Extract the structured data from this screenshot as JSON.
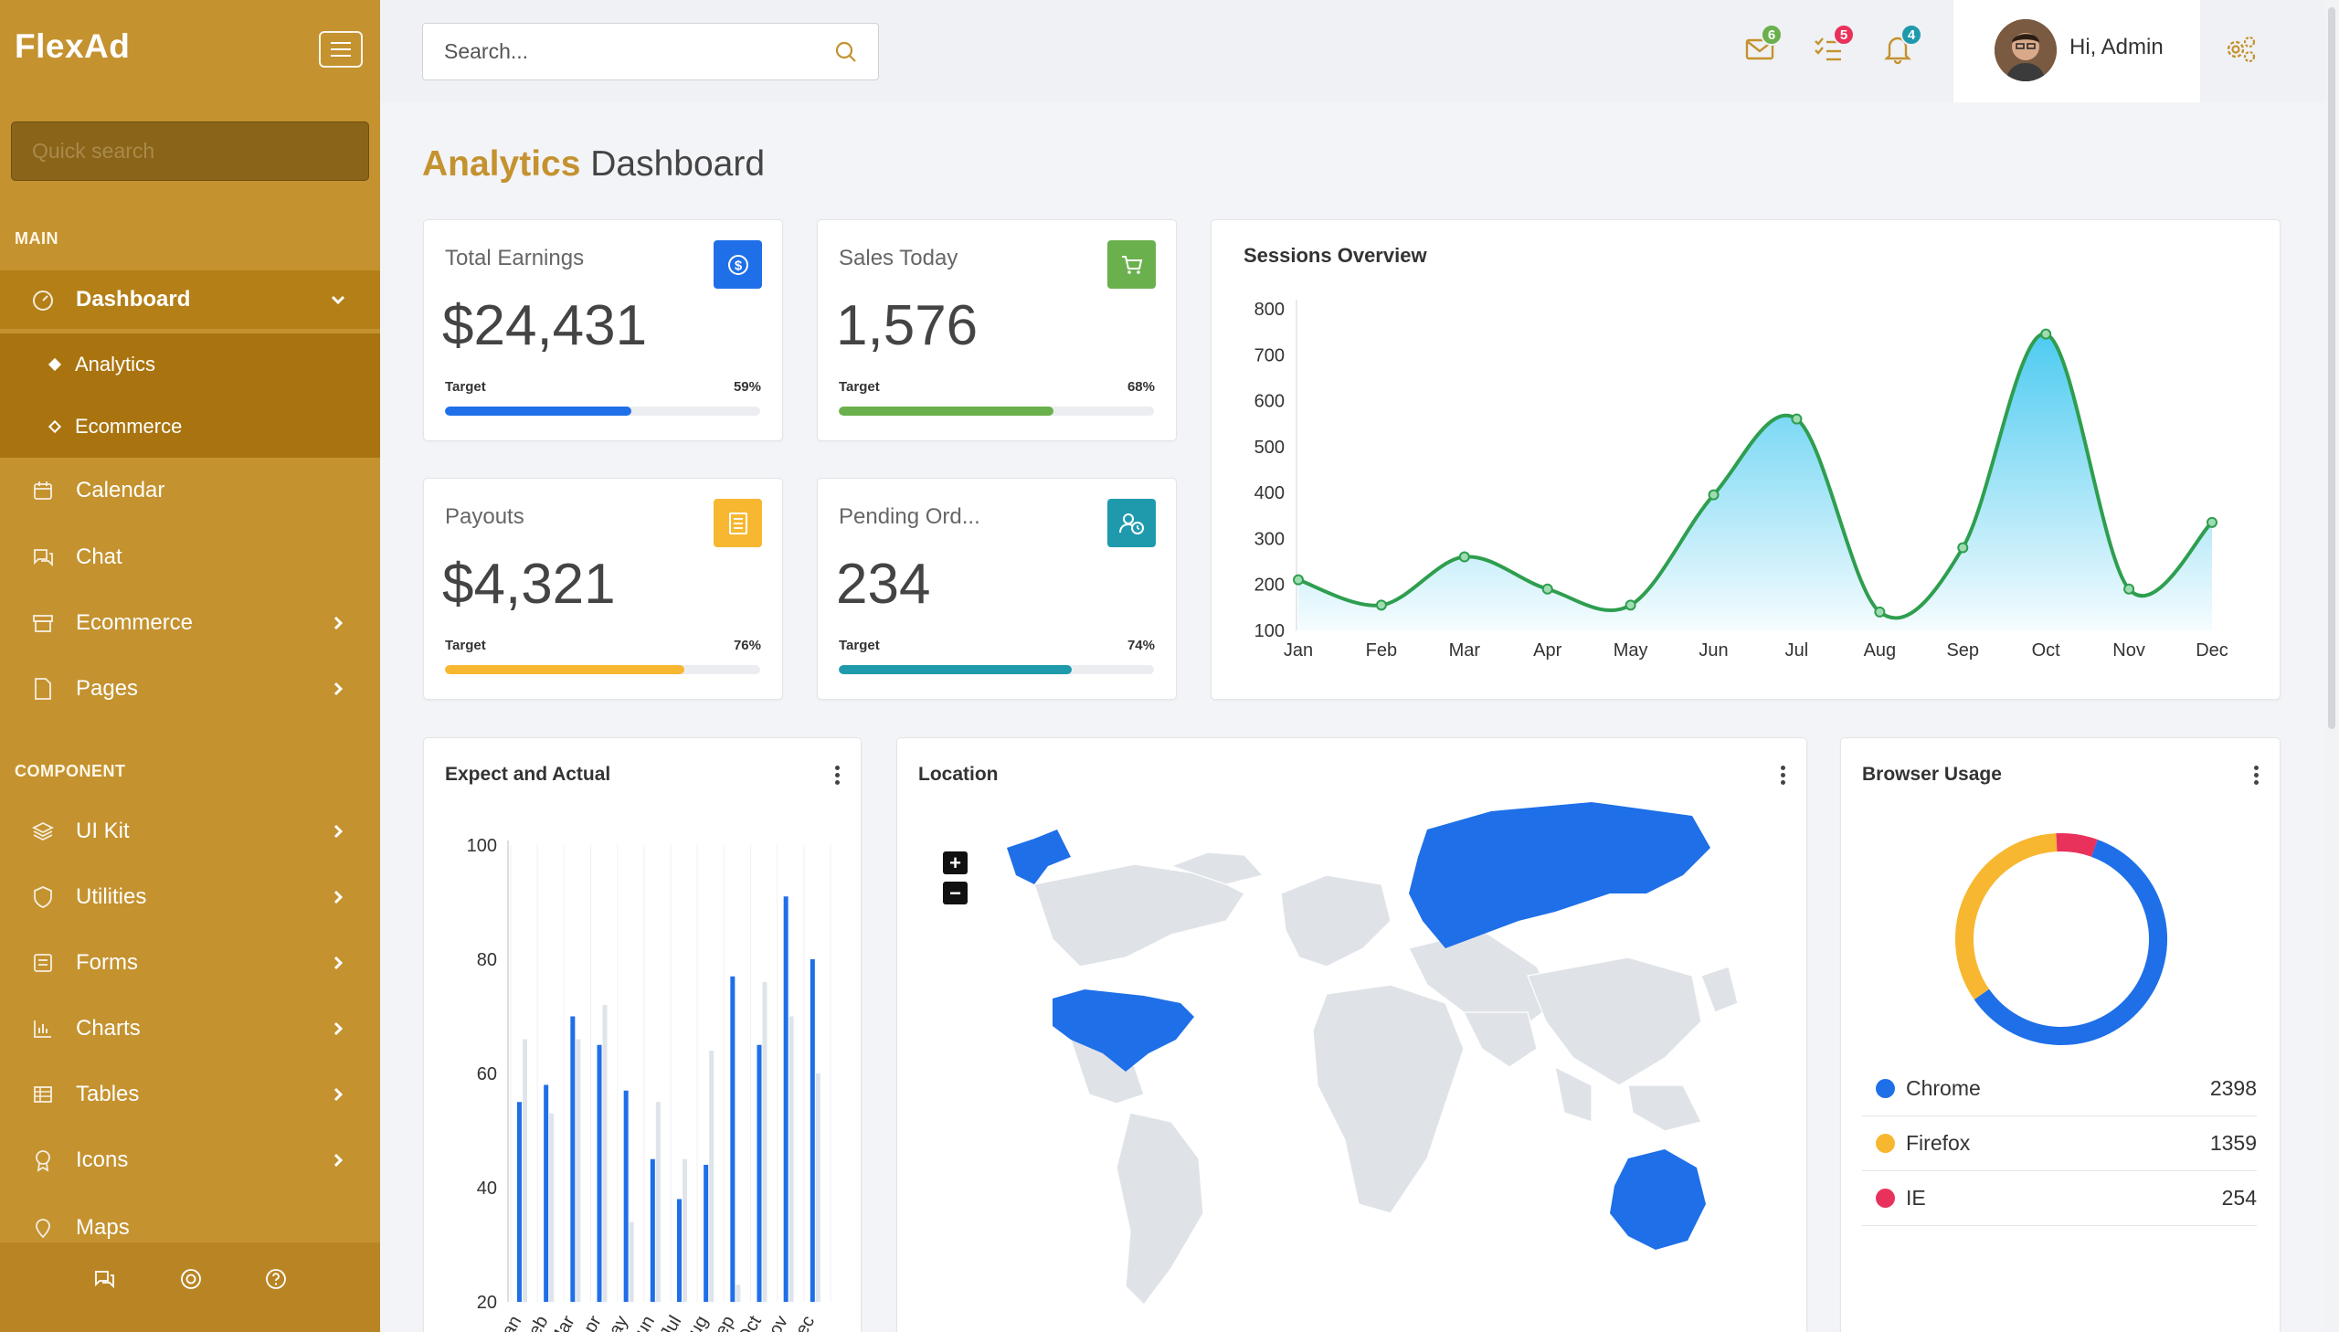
{
  "sidebar": {
    "brand": "FlexAd",
    "quick_search_placeholder": "Quick search",
    "section_main": "MAIN",
    "section_component": "COMPONENT",
    "items": [
      {
        "label": "Dashboard",
        "icon": "gauge-icon"
      },
      {
        "label": "Calendar",
        "icon": "calendar-icon"
      },
      {
        "label": "Chat",
        "icon": "chat-icon"
      },
      {
        "label": "Ecommerce",
        "icon": "store-icon"
      },
      {
        "label": "Pages",
        "icon": "file-icon"
      },
      {
        "label": "UI Kit",
        "icon": "layers-icon"
      },
      {
        "label": "Utilities",
        "icon": "shield-icon"
      },
      {
        "label": "Forms",
        "icon": "form-icon"
      },
      {
        "label": "Charts",
        "icon": "bar-chart-icon"
      },
      {
        "label": "Tables",
        "icon": "table-icon"
      },
      {
        "label": "Icons",
        "icon": "award-icon"
      },
      {
        "label": "Maps",
        "icon": "map-pin-icon"
      }
    ],
    "subitems": [
      {
        "label": "Analytics",
        "active": true
      },
      {
        "label": "Ecommerce",
        "active": false
      }
    ]
  },
  "topbar": {
    "search_placeholder": "Search...",
    "badges": {
      "mail": "6",
      "tasks": "5",
      "notifications": "4"
    },
    "greeting": "Hi, Admin"
  },
  "page": {
    "title_accent": "Analytics",
    "title_rest": " Dashboard"
  },
  "stats": [
    {
      "title": "Total Earnings",
      "value": "$24,431",
      "target_label": "Target",
      "percent": "59%",
      "fill": 0.59,
      "color": "#1e6fe8",
      "icon": "dollar-icon"
    },
    {
      "title": "Sales Today",
      "value": "1,576",
      "target_label": "Target",
      "percent": "68%",
      "fill": 0.68,
      "color": "#6ab04c",
      "icon": "cart-icon"
    },
    {
      "title": "Payouts",
      "value": "$4,321",
      "target_label": "Target",
      "percent": "76%",
      "fill": 0.76,
      "color": "#f7b731",
      "icon": "receipt-icon"
    },
    {
      "title": "Pending Ord...",
      "value": "234",
      "target_label": "Target",
      "percent": "74%",
      "fill": 0.74,
      "color": "#1f9aad",
      "icon": "user-clock-icon"
    }
  ],
  "sessions": {
    "title": "Sessions Overview"
  },
  "expect_actual": {
    "title": "Expect and Actual"
  },
  "location": {
    "title": "Location",
    "zoom_in": "+",
    "zoom_out": "−"
  },
  "browser_usage": {
    "title": "Browser Usage",
    "rows": [
      {
        "name": "Chrome",
        "value": "2398",
        "color": "#1e6fe8"
      },
      {
        "name": "Firefox",
        "value": "1359",
        "color": "#f7b731"
      },
      {
        "name": "IE",
        "value": "254",
        "color": "#e8315b"
      }
    ]
  },
  "chart_data": [
    {
      "type": "area",
      "title": "Sessions Overview",
      "categories": [
        "Jan",
        "Feb",
        "Mar",
        "Apr",
        "May",
        "Jun",
        "Jul",
        "Aug",
        "Sep",
        "Oct",
        "Nov",
        "Dec"
      ],
      "values": [
        210,
        155,
        260,
        190,
        155,
        395,
        560,
        140,
        280,
        745,
        190,
        335
      ],
      "ylim": [
        100,
        800
      ],
      "yticks": [
        100,
        200,
        300,
        400,
        500,
        600,
        700,
        800
      ],
      "color": "#2e9e4f",
      "fill_color": "#44c8f0",
      "grid": false
    },
    {
      "type": "bar",
      "title": "Expect and Actual",
      "categories": [
        "Jan",
        "Feb",
        "Mar",
        "Apr",
        "May",
        "Jun",
        "Jul",
        "Aug",
        "Sep",
        "Oct",
        "Nov",
        "Dec"
      ],
      "series": [
        {
          "values": [
            55,
            58,
            70,
            65,
            57,
            45,
            38,
            44,
            77,
            65,
            91,
            80
          ],
          "color": "#1e6fe8"
        },
        {
          "values": [
            66,
            53,
            66,
            72,
            34,
            55,
            45,
            64,
            23,
            76,
            70,
            60
          ],
          "color": "#dfe4ea"
        }
      ],
      "ylim": [
        20,
        100
      ],
      "yticks": [
        20,
        40,
        60,
        80,
        100
      ],
      "grid": true
    },
    {
      "type": "pie",
      "title": "Browser Usage",
      "categories": [
        "Chrome",
        "Firefox",
        "IE"
      ],
      "values": [
        2398,
        1359,
        254
      ],
      "colors": [
        "#1e6fe8",
        "#f7b731",
        "#e8315b"
      ]
    }
  ]
}
